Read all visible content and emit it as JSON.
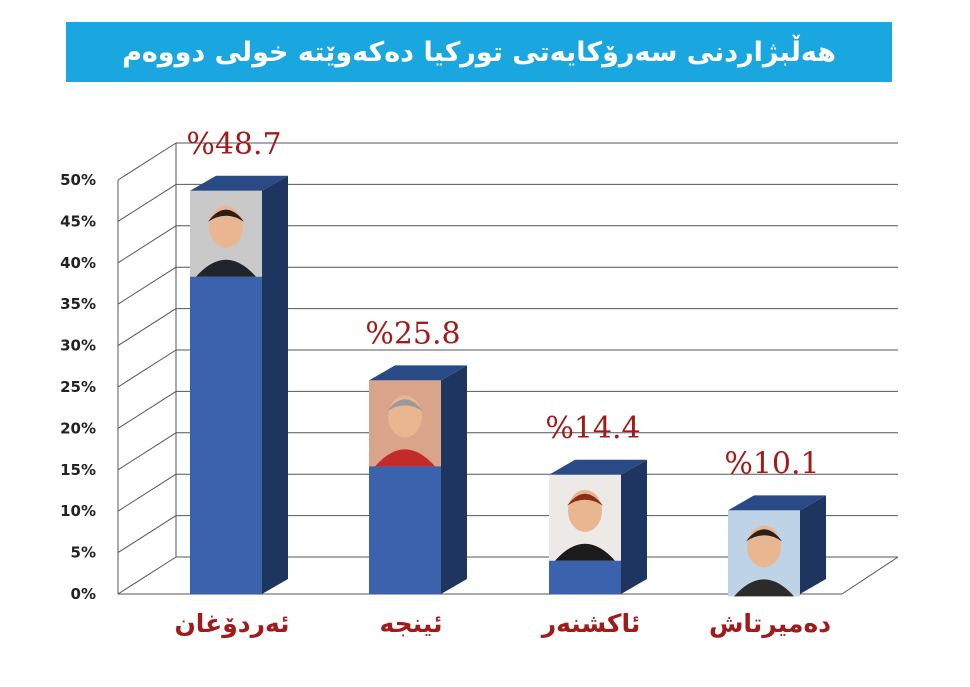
{
  "chart_data": {
    "type": "bar",
    "title": "هەڵبژاردنی سەرۆکایەتی تورکیا دەکەوێتە خولی دووەم",
    "categories": [
      "ئەردۆغان",
      "ئینجە",
      "ئاکشنەر",
      "دەمیرتاش"
    ],
    "values": [
      48.7,
      25.8,
      14.4,
      10.1
    ],
    "value_labels": [
      "%48.7",
      "%25.8",
      "%14.4",
      "%10.1"
    ],
    "y_ticks": [
      "0%",
      "5%",
      "10%",
      "15%",
      "20%",
      "25%",
      "30%",
      "35%",
      "40%",
      "45%",
      "50%"
    ],
    "ylim": [
      0,
      50
    ],
    "grid": true,
    "style": "3d-bar-with-candidate-photos"
  },
  "colors": {
    "banner": "#1aa7df",
    "bar_front": "#3a62ad",
    "bar_side": "#1e3560",
    "bar_top": "#2a4a86",
    "value_label": "#a01c1c",
    "category_label": "#a01c1c",
    "grid": "#555555"
  },
  "icons": [
    "erdogan-photo-icon",
    "ince-photo-icon",
    "aksener-photo-icon",
    "demirtas-photo-icon"
  ]
}
